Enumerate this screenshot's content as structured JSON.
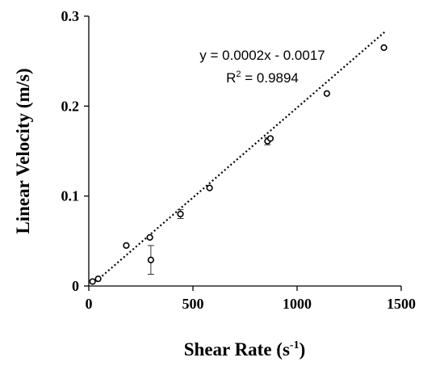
{
  "chart_data": {
    "type": "scatter",
    "xlabel": "Shear Rate (s",
    "xlabel_sup": "-1",
    "xlabel_end": ")",
    "ylabel": "Linear Velocity  (m/s)",
    "xlim": [
      0,
      1500
    ],
    "ylim": [
      0,
      0.3
    ],
    "x_ticks": [
      0,
      500,
      1000,
      1500
    ],
    "x_tick_labels": [
      "0",
      "500",
      "1000",
      "1500"
    ],
    "y_ticks": [
      0,
      0.1,
      0.2,
      0.3
    ],
    "y_tick_labels": [
      "0",
      "0.1",
      "0.2",
      "0.3"
    ],
    "grid": false,
    "points": [
      {
        "x": 18,
        "y": 0.005
      },
      {
        "x": 45,
        "y": 0.008
      },
      {
        "x": 180,
        "y": 0.045
      },
      {
        "x": 293,
        "y": 0.054
      },
      {
        "x": 298,
        "y": 0.029,
        "err": 0.016
      },
      {
        "x": 440,
        "y": 0.08,
        "err": 0.005
      },
      {
        "x": 580,
        "y": 0.109
      },
      {
        "x": 858,
        "y": 0.161,
        "err": 0.004
      },
      {
        "x": 872,
        "y": 0.164
      },
      {
        "x": 1143,
        "y": 0.214
      },
      {
        "x": 1417,
        "y": 0.265
      }
    ],
    "trendline": {
      "slope": 0.0002,
      "intercept": -0.0017,
      "style": "dotted"
    },
    "equation_text": "y = 0.0002x - 0.0017",
    "r2_label": "R",
    "r2_sup": "2",
    "r2_value": " = 0.9894"
  }
}
